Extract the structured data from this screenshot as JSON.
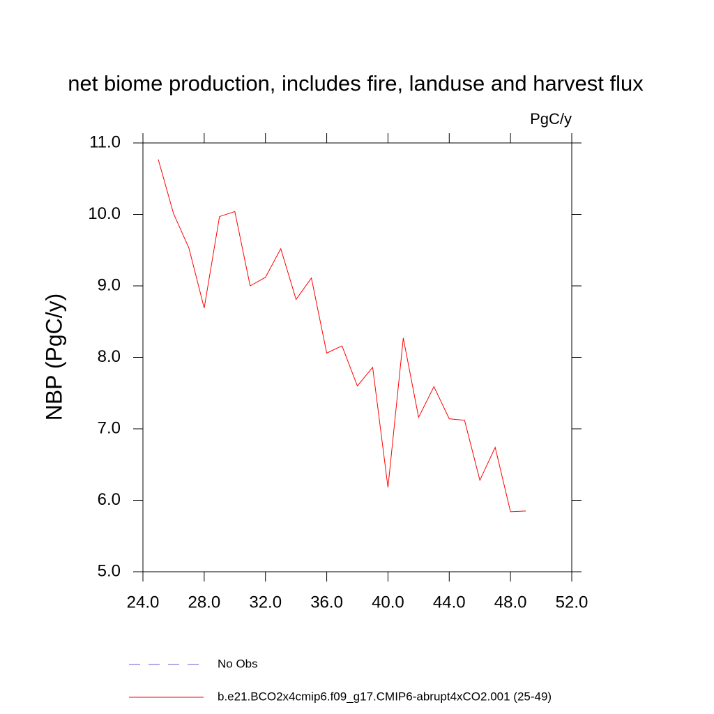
{
  "chart_data": {
    "type": "line",
    "title": "net biome production, includes fire, landuse and harvest flux",
    "units": "PgC/y",
    "ylabel": "NBP  (PgC/y)",
    "x": [
      25,
      26,
      27,
      28,
      29,
      30,
      31,
      32,
      33,
      34,
      35,
      36,
      37,
      38,
      39,
      40,
      41,
      42,
      43,
      44,
      45,
      46,
      47,
      48,
      49
    ],
    "series": [
      {
        "name": "No Obs",
        "color": "#6a5acd",
        "dashed": true,
        "values": [
          null,
          null,
          null,
          null,
          null,
          null,
          null,
          null,
          null,
          null,
          null,
          null,
          null,
          null,
          null,
          null,
          null,
          null,
          null,
          null,
          null,
          null,
          null,
          null,
          null
        ]
      },
      {
        "name": "b.e21.BCO2x4cmip6.f09_g17.CMIP6-abrupt4xCO2.001 (25-49)",
        "color": "#ff0000",
        "dashed": false,
        "values": [
          10.77,
          10.01,
          9.53,
          8.69,
          9.97,
          10.04,
          9.0,
          9.12,
          9.52,
          8.81,
          9.11,
          8.06,
          8.16,
          7.6,
          7.86,
          6.18,
          8.27,
          7.16,
          7.59,
          7.14,
          7.12,
          6.28,
          6.74,
          5.84,
          5.85
        ]
      }
    ],
    "xlim": [
      24,
      52
    ],
    "ylim": [
      5,
      11
    ],
    "xticks": [
      {
        "value": 24,
        "label": "24.0"
      },
      {
        "value": 28,
        "label": "28.0"
      },
      {
        "value": 32,
        "label": "32.0"
      },
      {
        "value": 36,
        "label": "36.0"
      },
      {
        "value": 40,
        "label": "40.0"
      },
      {
        "value": 44,
        "label": "44.0"
      },
      {
        "value": 48,
        "label": "48.0"
      },
      {
        "value": 52,
        "label": "52.0"
      }
    ],
    "yticks": [
      {
        "value": 5,
        "label": "5.0"
      },
      {
        "value": 6,
        "label": "6.0"
      },
      {
        "value": 7,
        "label": "7.0"
      },
      {
        "value": 8,
        "label": "8.0"
      },
      {
        "value": 9,
        "label": "9.0"
      },
      {
        "value": 10,
        "label": "10.0"
      },
      {
        "value": 11,
        "label": "11.0"
      }
    ]
  }
}
